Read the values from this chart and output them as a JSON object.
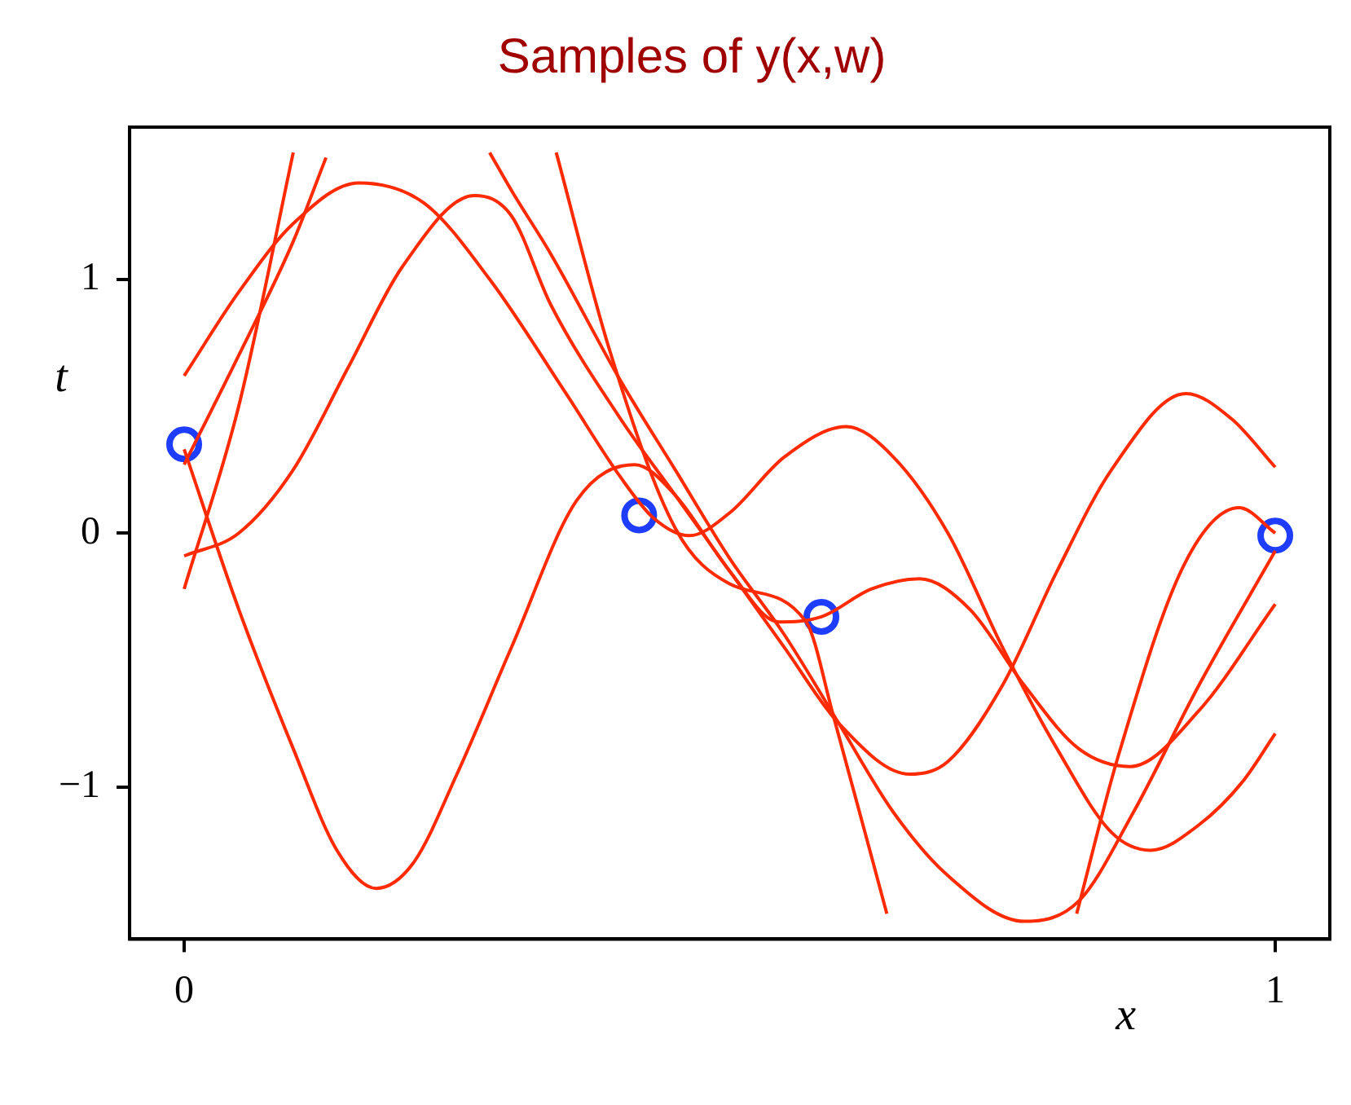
{
  "chart_data": {
    "type": "line",
    "title": "Samples of y(x,w)",
    "xlabel": "x",
    "ylabel": "t",
    "xlim": [
      -0.05,
      1.05
    ],
    "xticks": [
      0,
      1
    ],
    "ylim": [
      -1.6,
      1.6
    ],
    "yticks": [
      -1,
      0,
      1
    ],
    "grid": false,
    "legend": false,
    "series": [
      {
        "type": "line",
        "color": "#ff2a00",
        "x": [
          0,
          0.05,
          0.1,
          0.16,
          0.22,
          0.28,
          0.35,
          0.4,
          0.43,
          0.463,
          0.5,
          0.55,
          0.607,
          0.65,
          0.7,
          0.75,
          0.8,
          0.85,
          0.886,
          0.93,
          0.97,
          1
        ],
        "values": [
          0.62,
          0.95,
          1.22,
          1.38,
          1.3,
          1.0,
          0.55,
          0.22,
          0.06,
          -0.01,
          0.08,
          0.3,
          0.42,
          0.3,
          0.0,
          -0.45,
          -0.85,
          -1.18,
          -1.25,
          -1.15,
          -0.98,
          -0.79
        ]
      },
      {
        "type": "line",
        "color": "#ff2a00",
        "x": [
          0,
          0.05,
          0.1,
          0.15,
          0.2,
          0.266,
          0.3,
          0.336,
          0.4,
          0.45,
          0.5,
          0.55,
          0.6,
          0.665,
          0.7,
          0.75,
          0.8,
          0.85,
          0.918,
          0.96,
          1
        ],
        "values": [
          -0.09,
          0.0,
          0.25,
          0.65,
          1.05,
          1.33,
          1.25,
          0.9,
          0.45,
          0.15,
          -0.15,
          -0.45,
          -0.75,
          -0.95,
          -0.9,
          -0.6,
          -0.15,
          0.25,
          0.55,
          0.45,
          0.26
        ]
      },
      {
        "type": "line",
        "color": "#ff2a00",
        "x": [
          0,
          0.05,
          0.1,
          0.13,
          0.2,
          0.28,
          0.3,
          0.336,
          0.4,
          0.45,
          0.5,
          0.55,
          0.6,
          0.65,
          0.7,
          0.77,
          0.82,
          0.87,
          0.93,
          1
        ],
        "values": [
          0.27,
          0.7,
          1.15,
          1.48,
          null,
          1.5,
          1.35,
          1.1,
          0.6,
          0.25,
          -0.1,
          -0.4,
          -0.75,
          -1.1,
          -1.35,
          -1.53,
          -1.45,
          -1.1,
          -0.6,
          -0.07
        ]
      },
      {
        "type": "line",
        "color": "#ff2a00",
        "x": [
          0,
          0.05,
          0.1,
          0.2,
          0.341,
          0.39,
          0.45,
          0.5,
          0.57,
          0.595,
          0.644,
          0.73,
          0.818,
          0.856,
          0.917,
          0.967,
          1
        ],
        "values": [
          -0.22,
          0.5,
          1.5,
          null,
          1.5,
          0.72,
          0.02,
          -0.2,
          -0.35,
          -0.72,
          -1.5,
          null,
          -1.5,
          -0.88,
          -0.12,
          0.1,
          0.0
        ]
      },
      {
        "type": "line",
        "color": "#ff2a00",
        "x": [
          0,
          0.05,
          0.1,
          0.14,
          0.176,
          0.21,
          0.25,
          0.3,
          0.36,
          0.413,
          0.45,
          0.5,
          0.545,
          0.584,
          0.63,
          0.674,
          0.72,
          0.77,
          0.82,
          0.867,
          0.93,
          1
        ],
        "values": [
          0.33,
          -0.3,
          -0.85,
          -1.25,
          -1.4,
          -1.3,
          -0.95,
          -0.45,
          0.13,
          0.27,
          0.15,
          -0.15,
          -0.35,
          -0.33,
          -0.22,
          -0.18,
          -0.3,
          -0.6,
          -0.85,
          -0.92,
          -0.7,
          -0.28
        ]
      },
      {
        "type": "scatter",
        "color": "#1f3dff",
        "marker": "circle",
        "x": [
          0,
          0.417,
          0.584,
          1
        ],
        "values": [
          0.35,
          0.07,
          -0.33,
          -0.01
        ]
      }
    ]
  }
}
